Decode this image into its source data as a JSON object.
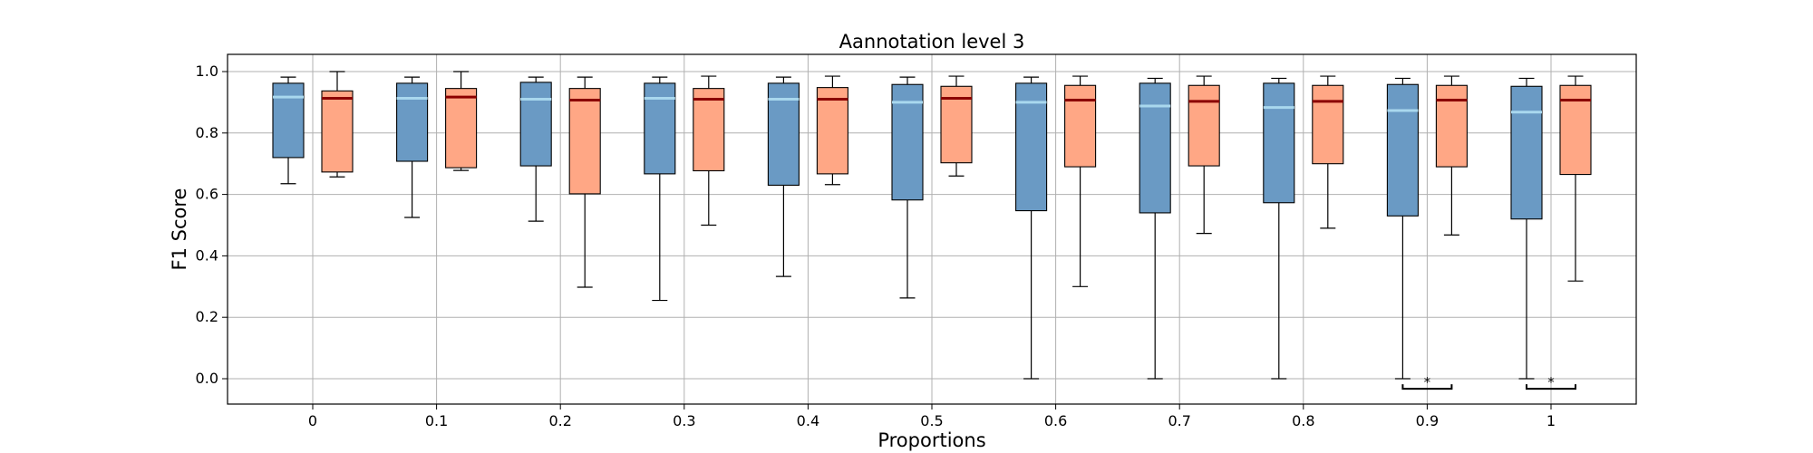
{
  "chart_data": {
    "type": "boxplot",
    "title": "Aannotation level 3",
    "xlabel": "Proportions",
    "ylabel": "F1 Score",
    "ylim": [
      -0.08,
      1.05
    ],
    "yticks": [
      "0.0",
      "0.2",
      "0.4",
      "0.6",
      "0.8",
      "1.0"
    ],
    "ytick_values": [
      0.0,
      0.2,
      0.4,
      0.6,
      0.8,
      1.0
    ],
    "categories": [
      "0",
      "0.1",
      "0.2",
      "0.3",
      "0.4",
      "0.5",
      "0.6",
      "0.7",
      "0.8",
      "0.9",
      "1"
    ],
    "grid": true,
    "colors": {
      "blue": "#6a9ac4",
      "orange": "#ffa785",
      "blue_median": "#a9d8ee",
      "orange_median": "#8b0000"
    },
    "series": [
      {
        "color": "#6a9ac4",
        "median_color": "#a9d8ee",
        "boxes": [
          {
            "whislo": 0.635,
            "q1": 0.72,
            "med": 0.917,
            "q3": 0.962,
            "whishi": 0.982
          },
          {
            "whislo": 0.525,
            "q1": 0.708,
            "med": 0.913,
            "q3": 0.962,
            "whishi": 0.982
          },
          {
            "whislo": 0.513,
            "q1": 0.693,
            "med": 0.91,
            "q3": 0.965,
            "whishi": 0.982
          },
          {
            "whislo": 0.255,
            "q1": 0.667,
            "med": 0.913,
            "q3": 0.962,
            "whishi": 0.982
          },
          {
            "whislo": 0.333,
            "q1": 0.63,
            "med": 0.91,
            "q3": 0.962,
            "whishi": 0.982
          },
          {
            "whislo": 0.263,
            "q1": 0.582,
            "med": 0.9,
            "q3": 0.958,
            "whishi": 0.982
          },
          {
            "whislo": 0.0,
            "q1": 0.547,
            "med": 0.9,
            "q3": 0.962,
            "whishi": 0.982
          },
          {
            "whislo": 0.0,
            "q1": 0.54,
            "med": 0.888,
            "q3": 0.962,
            "whishi": 0.978
          },
          {
            "whislo": 0.0,
            "q1": 0.573,
            "med": 0.883,
            "q3": 0.962,
            "whishi": 0.978
          },
          {
            "whislo": 0.0,
            "q1": 0.53,
            "med": 0.873,
            "q3": 0.958,
            "whishi": 0.978
          },
          {
            "whislo": 0.0,
            "q1": 0.52,
            "med": 0.868,
            "q3": 0.952,
            "whishi": 0.978
          }
        ]
      },
      {
        "color": "#ffa785",
        "median_color": "#8b0000",
        "boxes": [
          {
            "whislo": 0.657,
            "q1": 0.673,
            "med": 0.913,
            "q3": 0.937,
            "whishi": 1.0
          },
          {
            "whislo": 0.678,
            "q1": 0.687,
            "med": 0.917,
            "q3": 0.945,
            "whishi": 1.0
          },
          {
            "whislo": 0.298,
            "q1": 0.602,
            "med": 0.907,
            "q3": 0.945,
            "whishi": 0.982
          },
          {
            "whislo": 0.5,
            "q1": 0.677,
            "med": 0.91,
            "q3": 0.945,
            "whishi": 0.985
          },
          {
            "whislo": 0.632,
            "q1": 0.667,
            "med": 0.91,
            "q3": 0.948,
            "whishi": 0.985
          },
          {
            "whislo": 0.66,
            "q1": 0.703,
            "med": 0.913,
            "q3": 0.952,
            "whishi": 0.985
          },
          {
            "whislo": 0.3,
            "q1": 0.69,
            "med": 0.907,
            "q3": 0.955,
            "whishi": 0.985
          },
          {
            "whislo": 0.473,
            "q1": 0.693,
            "med": 0.903,
            "q3": 0.955,
            "whishi": 0.985
          },
          {
            "whislo": 0.49,
            "q1": 0.7,
            "med": 0.903,
            "q3": 0.955,
            "whishi": 0.985
          },
          {
            "whislo": 0.468,
            "q1": 0.69,
            "med": 0.907,
            "q3": 0.955,
            "whishi": 0.985
          },
          {
            "whislo": 0.318,
            "q1": 0.665,
            "med": 0.907,
            "q3": 0.955,
            "whishi": 0.985
          }
        ]
      }
    ],
    "annotations": [
      {
        "category": "0.9",
        "text": "*"
      },
      {
        "category": "1",
        "text": "*"
      }
    ]
  }
}
